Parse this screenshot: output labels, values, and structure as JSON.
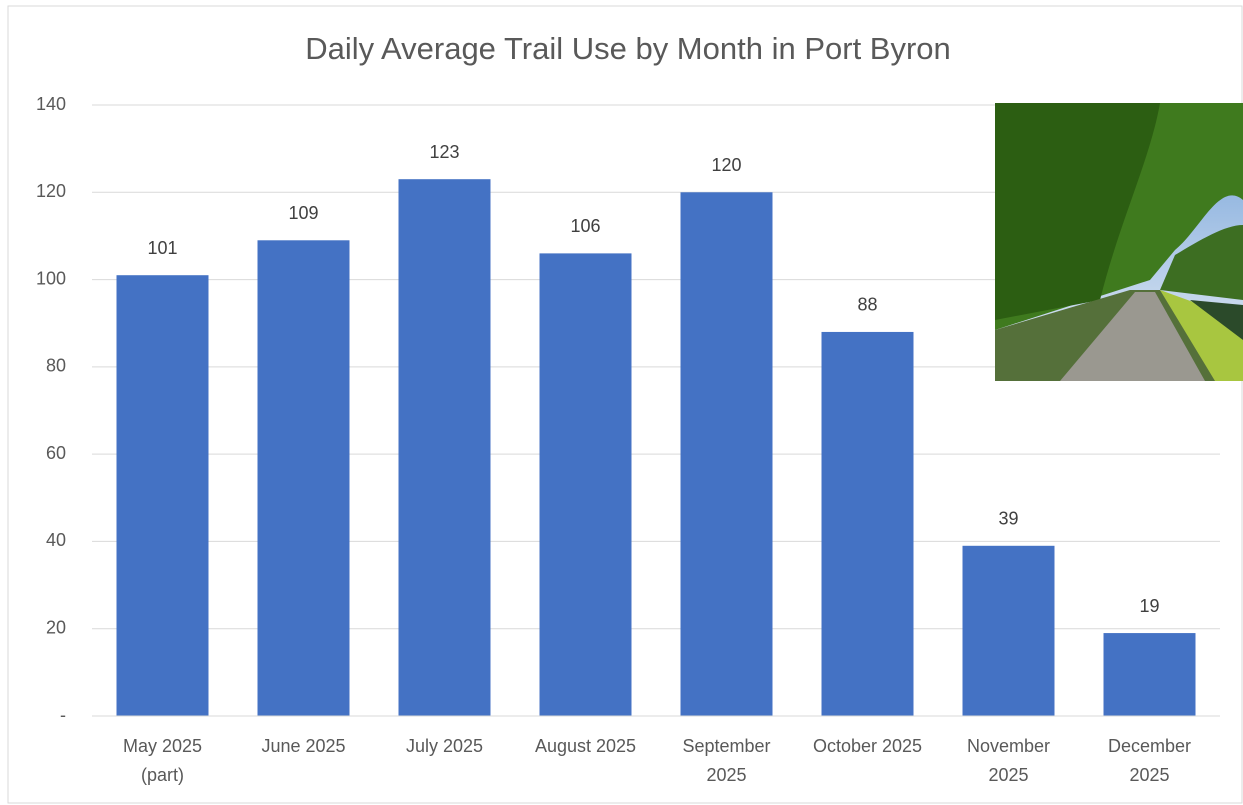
{
  "chart_data": {
    "type": "bar",
    "title": "Daily Average Trail Use by Month in Port Byron",
    "categories": [
      "May 2025\n(part)",
      "June 2025",
      "July 2025",
      "August 2025",
      "September\n2025",
      "October 2025",
      "November\n2025",
      "December\n2025"
    ],
    "values": [
      101,
      109,
      123,
      106,
      120,
      88,
      39,
      19
    ],
    "color": "#4472c4",
    "ylim": [
      0,
      140
    ],
    "yticks": [
      {
        "value": 0,
        "label": "-"
      },
      20,
      40,
      60,
      80,
      100,
      120,
      140
    ],
    "grid": true
  }
}
